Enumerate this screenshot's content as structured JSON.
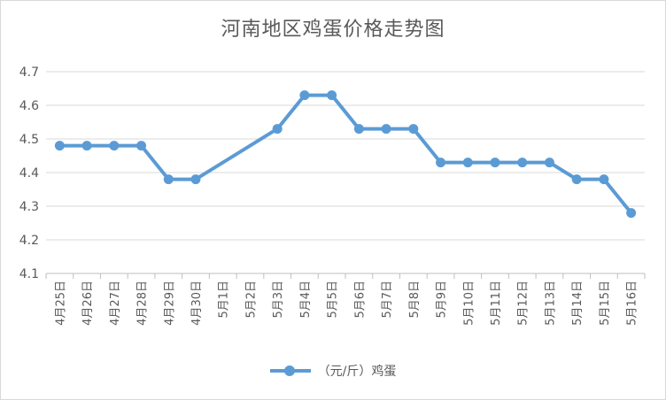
{
  "chart_data": {
    "type": "line",
    "title": "河南地区鸡蛋价格走势图",
    "categories": [
      "4月25日",
      "4月26日",
      "4月27日",
      "4月28日",
      "4月29日",
      "4月30日",
      "5月1日",
      "5月2日",
      "5月3日",
      "5月4日",
      "5月5日",
      "5月6日",
      "5月7日",
      "5月8日",
      "5月9日",
      "5月10日",
      "5月11日",
      "5月12日",
      "5月13日",
      "5月14日",
      "5月15日",
      "5月16日"
    ],
    "series": [
      {
        "name": "（元/斤）鸡蛋",
        "color": "#5b9bd5",
        "values": [
          4.48,
          4.48,
          4.48,
          4.48,
          4.38,
          4.38,
          null,
          null,
          4.53,
          4.63,
          4.63,
          4.53,
          4.53,
          4.53,
          4.43,
          4.43,
          4.43,
          4.43,
          4.43,
          4.38,
          4.38,
          4.28
        ]
      }
    ],
    "ylim": [
      4.1,
      4.7
    ],
    "yticks": [
      "4.1",
      "4.2",
      "4.3",
      "4.4",
      "4.5",
      "4.6",
      "4.7"
    ],
    "grid": true,
    "legend": "bottom"
  }
}
